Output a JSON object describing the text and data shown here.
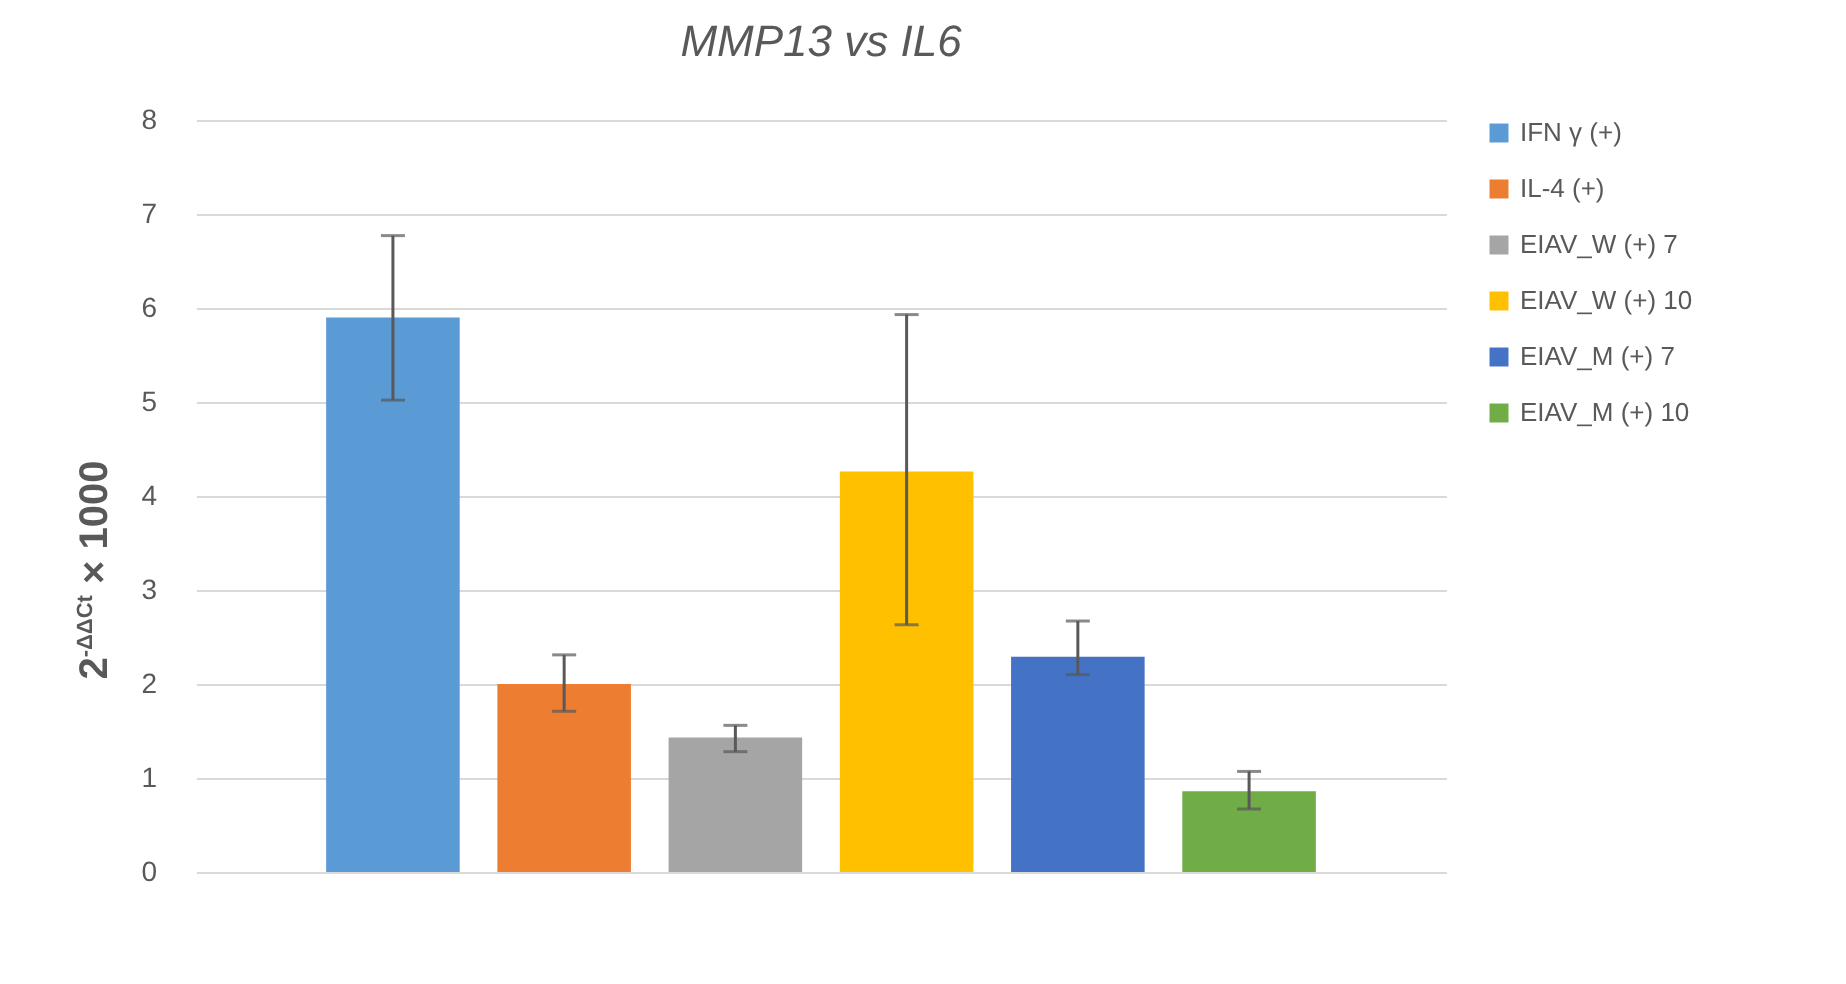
{
  "chart_data": {
    "type": "bar",
    "title": "MMP13 vs IL6",
    "ylabel": "2$^{-ΔΔCt}$ × 1000",
    "categories": [
      null
    ],
    "series": [
      {
        "name": "IFN γ (+)",
        "color": "#5b9bd5",
        "values": [
          5.9
        ],
        "errors": [
          [
            5.02,
            6.77
          ]
        ]
      },
      {
        "name": "IL-4 (+)",
        "color": "#ed7d31",
        "values": [
          2.0
        ],
        "errors": [
          [
            1.71,
            2.31
          ]
        ]
      },
      {
        "name": "EIAV_W (+) 7",
        "color": "#a5a5a5",
        "values": [
          1.43
        ],
        "errors": [
          [
            1.28,
            1.56
          ]
        ]
      },
      {
        "name": "EIAV_W (+) 10",
        "color": "#ffc000",
        "values": [
          4.26
        ],
        "errors": [
          [
            2.63,
            5.93
          ]
        ]
      },
      {
        "name": "EIAV_M (+) 7",
        "color": "#4472c4",
        "values": [
          2.29
        ],
        "errors": [
          [
            2.1,
            2.67
          ]
        ]
      },
      {
        "name": "EIAV_M (+) 10",
        "color": "#70ad47",
        "values": [
          0.86
        ],
        "errors": [
          [
            0.67,
            1.07
          ]
        ]
      }
    ],
    "ylim": [
      0,
      8
    ],
    "yticks": [
      0,
      1,
      2,
      3,
      4,
      5,
      6,
      7,
      8
    ],
    "grid": "y",
    "legend": "right"
  }
}
